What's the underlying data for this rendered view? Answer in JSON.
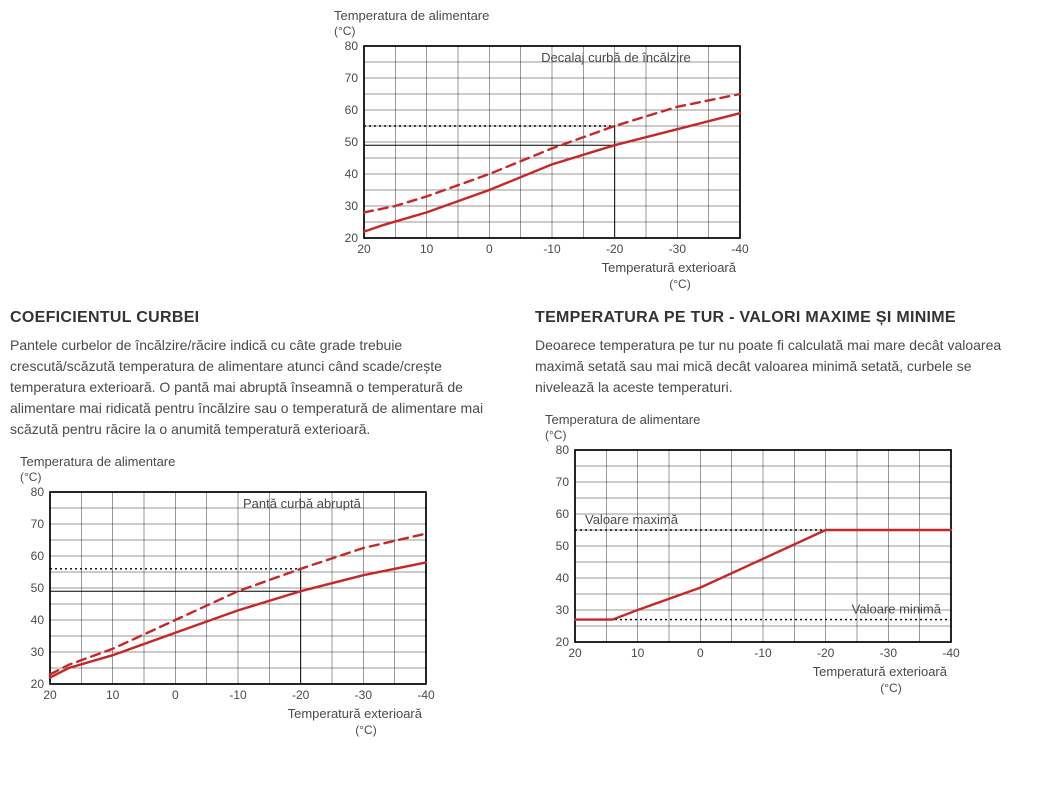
{
  "chart_common": {
    "y_title": "Temperatura de alimentare",
    "y_unit": "(°C)",
    "x_title": "Temperatură exterioară",
    "x_unit": "(°C)",
    "x_ticks": [
      "20",
      "10",
      "0",
      "-10",
      "-20",
      "-30",
      "-40"
    ],
    "y_ticks": [
      "20",
      "30",
      "40",
      "50",
      "60",
      "70",
      "80"
    ],
    "ylim": [
      20,
      80
    ],
    "xlim": [
      20,
      -40
    ],
    "bg": "#ffffff",
    "grid_color": "#000000",
    "curve_color": "#c62828"
  },
  "chart1": {
    "annotation": "Decalaj curbă de încălzire",
    "solid": [
      [
        20,
        22
      ],
      [
        17,
        24
      ],
      [
        10,
        28
      ],
      [
        0,
        35
      ],
      [
        -10,
        43
      ],
      [
        -20,
        49
      ],
      [
        -30,
        54
      ],
      [
        -40,
        59
      ]
    ],
    "dashed": [
      [
        20,
        28
      ],
      [
        15,
        30
      ],
      [
        10,
        33
      ],
      [
        0,
        40
      ],
      [
        -10,
        48
      ],
      [
        -20,
        55
      ],
      [
        -30,
        61
      ],
      [
        -40,
        65
      ]
    ],
    "ref_vert_x": -20,
    "ref_solid_y": 49,
    "ref_dash_y": 55
  },
  "section1": {
    "heading": "COEFICIENTUL CURBEI",
    "body": "Pantele curbelor de încălzire/răcire indică cu câte grade trebuie crescută/scăzută temperatura de alimentare atunci când scade/crește temperatura exterioară. O pantă mai abruptă înseamnă o temperatură de alimentare mai ridicată pentru încălzire sau o temperatură de alimentare mai scăzută pentru răcire la o anumită temperatură exterioară."
  },
  "chart2": {
    "annotation": "Pantă curbă abruptă",
    "solid": [
      [
        20,
        22
      ],
      [
        17,
        25
      ],
      [
        10,
        29
      ],
      [
        0,
        36
      ],
      [
        -10,
        43
      ],
      [
        -20,
        49
      ],
      [
        -30,
        54
      ],
      [
        -40,
        58
      ]
    ],
    "dashed": [
      [
        20,
        23
      ],
      [
        17,
        26
      ],
      [
        10,
        31
      ],
      [
        0,
        40
      ],
      [
        -10,
        49
      ],
      [
        -20,
        56
      ],
      [
        -30,
        62.5
      ],
      [
        -40,
        67
      ]
    ],
    "ref_vert_x": -20,
    "ref_solid_y": 49,
    "ref_dash_y": 56
  },
  "section2": {
    "heading": "TEMPERATURA PE TUR - VALORI MAXIME ȘI MINIME",
    "body": "Deoarece temperatura pe tur nu poate fi calculată mai mare decât valoarea maximă setată sau mai mică decât valoarea minimă setată, curbele se nivelează la aceste temperaturi."
  },
  "chart3": {
    "max_label": "Valoare maximă",
    "min_label": "Valoare minimă",
    "curve": [
      [
        20,
        27
      ],
      [
        14,
        27
      ],
      [
        10,
        30
      ],
      [
        0,
        37
      ],
      [
        -10,
        46
      ],
      [
        -20,
        55
      ],
      [
        -21,
        55
      ],
      [
        -40,
        55
      ]
    ],
    "max_y": 55,
    "min_y": 27
  }
}
